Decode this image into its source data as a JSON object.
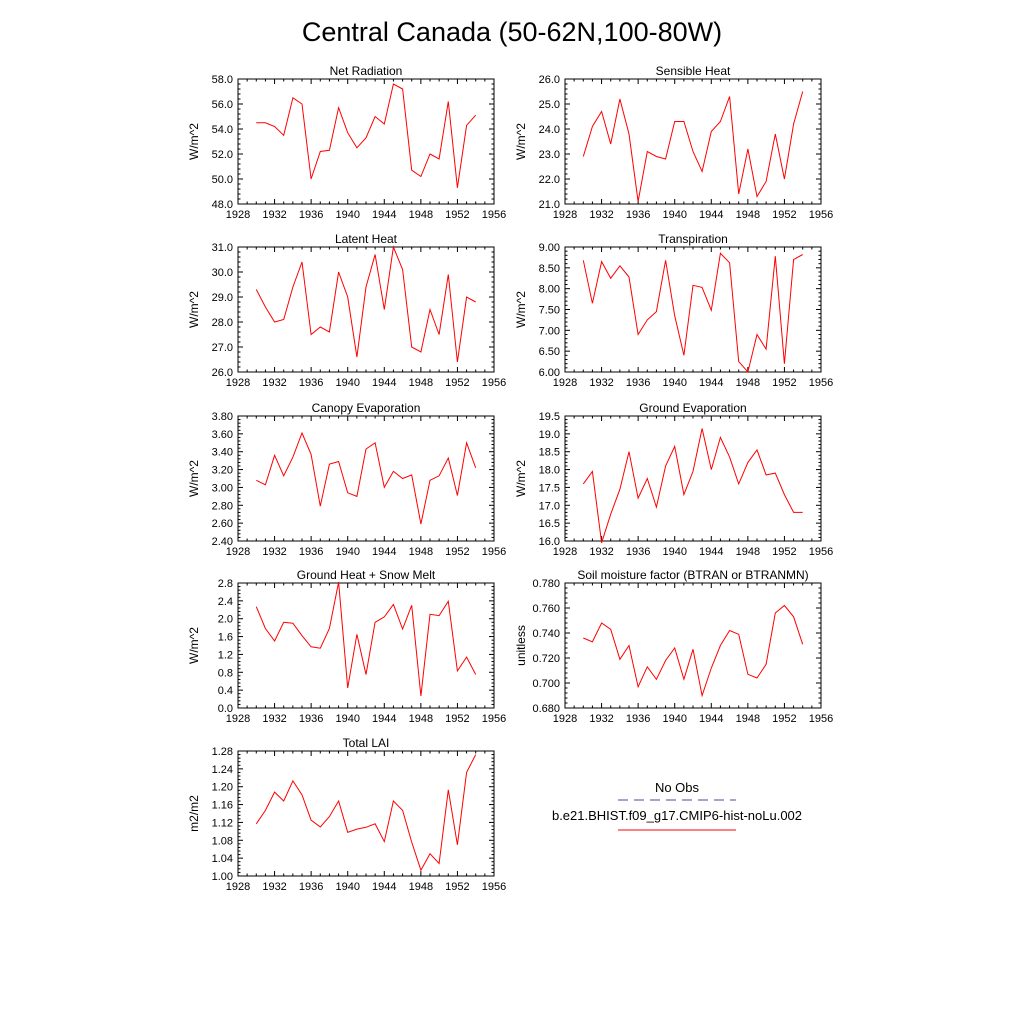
{
  "page": {
    "title": "Central Canada (50-62N,100-80W)"
  },
  "legend": {
    "obs_label": "No Obs",
    "obs_color": "#4a4aa0",
    "model_label": "b.e21.BHIST.f09_g17.CMIP6-hist-noLu.002",
    "model_color": "#ff0000"
  },
  "chart_data": [
    {
      "type": "line",
      "title": "Net Radiation",
      "xlabel": "",
      "ylabel": "W/m^2",
      "xlim": [
        1928,
        1956
      ],
      "ylim": [
        48,
        58
      ],
      "yticks": [
        "48.0",
        "50.0",
        "52.0",
        "54.0",
        "56.0",
        "58.0"
      ],
      "xticks": [
        "1928",
        "1932",
        "1936",
        "1940",
        "1944",
        "1948",
        "1952",
        "1956"
      ],
      "x": [
        1930,
        1931,
        1932,
        1933,
        1934,
        1935,
        1936,
        1937,
        1938,
        1939,
        1940,
        1941,
        1942,
        1943,
        1944,
        1945,
        1946,
        1947,
        1948,
        1949,
        1950,
        1951,
        1952,
        1953,
        1954
      ],
      "series": [
        {
          "values": [
            54.5,
            54.5,
            54.2,
            53.5,
            56.5,
            56.0,
            50.0,
            52.2,
            52.3,
            55.7,
            53.7,
            52.5,
            53.3,
            55.0,
            54.4,
            57.6,
            57.2,
            50.7,
            50.2,
            52.0,
            51.6,
            56.2,
            49.3,
            54.3,
            55.1
          ]
        }
      ]
    },
    {
      "type": "line",
      "title": "Sensible Heat",
      "xlabel": "",
      "ylabel": "W/m^2",
      "xlim": [
        1928,
        1956
      ],
      "ylim": [
        21,
        26
      ],
      "yticks": [
        "21.0",
        "22.0",
        "23.0",
        "24.0",
        "25.0",
        "26.0"
      ],
      "xticks": [
        "1928",
        "1932",
        "1936",
        "1940",
        "1944",
        "1948",
        "1952",
        "1956"
      ],
      "x": [
        1930,
        1931,
        1932,
        1933,
        1934,
        1935,
        1936,
        1937,
        1938,
        1939,
        1940,
        1941,
        1942,
        1943,
        1944,
        1945,
        1946,
        1947,
        1948,
        1949,
        1950,
        1951,
        1952,
        1953,
        1954
      ],
      "series": [
        {
          "values": [
            22.9,
            24.1,
            24.7,
            23.4,
            25.2,
            23.8,
            21.1,
            23.1,
            22.9,
            22.8,
            24.3,
            24.3,
            23.1,
            22.3,
            23.9,
            24.3,
            25.3,
            21.4,
            23.2,
            21.3,
            21.9,
            23.8,
            22.0,
            24.2,
            25.5
          ]
        }
      ]
    },
    {
      "type": "line",
      "title": "Latent Heat",
      "xlabel": "",
      "ylabel": "W/m^2",
      "xlim": [
        1928,
        1956
      ],
      "ylim": [
        26,
        31
      ],
      "yticks": [
        "26.0",
        "27.0",
        "28.0",
        "29.0",
        "30.0",
        "31.0"
      ],
      "xticks": [
        "1928",
        "1932",
        "1936",
        "1940",
        "1944",
        "1948",
        "1952",
        "1956"
      ],
      "x": [
        1930,
        1931,
        1932,
        1933,
        1934,
        1935,
        1936,
        1937,
        1938,
        1939,
        1940,
        1941,
        1942,
        1943,
        1944,
        1945,
        1946,
        1947,
        1948,
        1949,
        1950,
        1951,
        1952,
        1953,
        1954
      ],
      "series": [
        {
          "values": [
            29.3,
            28.6,
            28.0,
            28.1,
            29.4,
            30.4,
            27.5,
            27.8,
            27.6,
            30.0,
            29.0,
            26.6,
            29.4,
            30.7,
            28.5,
            31.0,
            30.1,
            27.0,
            26.8,
            28.5,
            27.5,
            29.9,
            26.4,
            29.0,
            28.8
          ]
        }
      ]
    },
    {
      "type": "line",
      "title": "Transpiration",
      "xlabel": "",
      "ylabel": "W/m^2",
      "xlim": [
        1928,
        1956
      ],
      "ylim": [
        6,
        9
      ],
      "yticks": [
        "6.00",
        "6.50",
        "7.00",
        "7.50",
        "8.00",
        "8.50",
        "9.00"
      ],
      "xticks": [
        "1928",
        "1932",
        "1936",
        "1940",
        "1944",
        "1948",
        "1952",
        "1956"
      ],
      "x": [
        1930,
        1931,
        1932,
        1933,
        1934,
        1935,
        1936,
        1937,
        1938,
        1939,
        1940,
        1941,
        1942,
        1943,
        1944,
        1945,
        1946,
        1947,
        1948,
        1949,
        1950,
        1951,
        1952,
        1953,
        1954
      ],
      "series": [
        {
          "values": [
            8.68,
            7.65,
            8.65,
            8.25,
            8.55,
            8.28,
            6.9,
            7.25,
            7.45,
            8.68,
            7.35,
            6.4,
            8.08,
            8.03,
            7.48,
            8.85,
            8.62,
            6.25,
            6.0,
            6.9,
            6.55,
            8.78,
            6.2,
            8.7,
            8.82
          ]
        }
      ]
    },
    {
      "type": "line",
      "title": "Canopy Evaporation",
      "xlabel": "",
      "ylabel": "W/m^2",
      "xlim": [
        1928,
        1956
      ],
      "ylim": [
        2.4,
        3.8
      ],
      "yticks": [
        "2.40",
        "2.60",
        "2.80",
        "3.00",
        "3.20",
        "3.40",
        "3.60",
        "3.80"
      ],
      "xticks": [
        "1928",
        "1932",
        "1936",
        "1940",
        "1944",
        "1948",
        "1952",
        "1956"
      ],
      "x": [
        1930,
        1931,
        1932,
        1933,
        1934,
        1935,
        1936,
        1937,
        1938,
        1939,
        1940,
        1941,
        1942,
        1943,
        1944,
        1945,
        1946,
        1947,
        1948,
        1949,
        1950,
        1951,
        1952,
        1953,
        1954
      ],
      "series": [
        {
          "values": [
            3.08,
            3.03,
            3.36,
            3.13,
            3.34,
            3.61,
            3.37,
            2.79,
            3.26,
            3.29,
            2.94,
            2.9,
            3.43,
            3.5,
            3.0,
            3.18,
            3.1,
            3.14,
            2.59,
            3.08,
            3.13,
            3.33,
            2.91,
            3.5,
            3.22
          ]
        }
      ]
    },
    {
      "type": "line",
      "title": "Ground Evaporation",
      "xlabel": "",
      "ylabel": "W/m^2",
      "xlim": [
        1928,
        1956
      ],
      "ylim": [
        16,
        19.5
      ],
      "yticks": [
        "16.0",
        "16.5",
        "17.0",
        "17.5",
        "18.0",
        "18.5",
        "19.0",
        "19.5"
      ],
      "xticks": [
        "1928",
        "1932",
        "1936",
        "1940",
        "1944",
        "1948",
        "1952",
        "1956"
      ],
      "x": [
        1930,
        1931,
        1932,
        1933,
        1934,
        1935,
        1936,
        1937,
        1938,
        1939,
        1940,
        1941,
        1942,
        1943,
        1944,
        1945,
        1946,
        1947,
        1948,
        1949,
        1950,
        1951,
        1952,
        1953,
        1954
      ],
      "series": [
        {
          "values": [
            17.6,
            17.95,
            15.95,
            16.75,
            17.45,
            18.5,
            17.2,
            17.75,
            16.95,
            18.1,
            18.65,
            17.3,
            17.95,
            19.15,
            18.0,
            18.9,
            18.35,
            17.6,
            18.2,
            18.55,
            17.85,
            17.9,
            17.3,
            16.8,
            16.8
          ]
        }
      ]
    },
    {
      "type": "line",
      "title": "Ground Heat + Snow Melt",
      "xlabel": "",
      "ylabel": "W/m^2",
      "xlim": [
        1928,
        1956
      ],
      "ylim": [
        0,
        2.8
      ],
      "yticks": [
        "0.0",
        "0.4",
        "0.8",
        "1.2",
        "1.6",
        "2.0",
        "2.4",
        "2.8"
      ],
      "xticks": [
        "1928",
        "1932",
        "1936",
        "1940",
        "1944",
        "1948",
        "1952",
        "1956"
      ],
      "x": [
        1930,
        1931,
        1932,
        1933,
        1934,
        1935,
        1936,
        1937,
        1938,
        1939,
        1940,
        1941,
        1942,
        1943,
        1944,
        1945,
        1946,
        1947,
        1948,
        1949,
        1950,
        1951,
        1952,
        1953,
        1954
      ],
      "series": [
        {
          "values": [
            2.27,
            1.78,
            1.5,
            1.92,
            1.9,
            1.62,
            1.37,
            1.34,
            1.78,
            2.82,
            0.45,
            1.65,
            0.75,
            1.92,
            2.04,
            2.32,
            1.77,
            2.3,
            0.27,
            2.1,
            2.07,
            2.39,
            0.83,
            1.14,
            0.75
          ]
        }
      ]
    },
    {
      "type": "line",
      "title": "Soil moisture factor (BTRAN or BTRANMN)",
      "xlabel": "",
      "ylabel": "unitless",
      "xlim": [
        1928,
        1956
      ],
      "ylim": [
        0.68,
        0.78
      ],
      "yticks": [
        "0.680",
        "0.700",
        "0.720",
        "0.740",
        "0.760",
        "0.780"
      ],
      "xticks": [
        "1928",
        "1932",
        "1936",
        "1940",
        "1944",
        "1948",
        "1952",
        "1956"
      ],
      "x": [
        1930,
        1931,
        1932,
        1933,
        1934,
        1935,
        1936,
        1937,
        1938,
        1939,
        1940,
        1941,
        1942,
        1943,
        1944,
        1945,
        1946,
        1947,
        1948,
        1949,
        1950,
        1951,
        1952,
        1953,
        1954
      ],
      "series": [
        {
          "values": [
            0.736,
            0.733,
            0.748,
            0.743,
            0.719,
            0.73,
            0.697,
            0.713,
            0.703,
            0.718,
            0.728,
            0.703,
            0.727,
            0.69,
            0.712,
            0.73,
            0.742,
            0.739,
            0.707,
            0.704,
            0.715,
            0.756,
            0.762,
            0.753,
            0.731
          ]
        }
      ]
    },
    {
      "type": "line",
      "title": "Total LAI",
      "xlabel": "",
      "ylabel": "m2/m2",
      "xlim": [
        1928,
        1956
      ],
      "ylim": [
        1.0,
        1.28
      ],
      "yticks": [
        "1.00",
        "1.04",
        "1.08",
        "1.12",
        "1.16",
        "1.20",
        "1.24",
        "1.28"
      ],
      "xticks": [
        "1928",
        "1932",
        "1936",
        "1940",
        "1944",
        "1948",
        "1952",
        "1956"
      ],
      "x": [
        1930,
        1931,
        1932,
        1933,
        1934,
        1935,
        1936,
        1937,
        1938,
        1939,
        1940,
        1941,
        1942,
        1943,
        1944,
        1945,
        1946,
        1947,
        1948,
        1949,
        1950,
        1951,
        1952,
        1953,
        1954
      ],
      "series": [
        {
          "values": [
            1.117,
            1.147,
            1.188,
            1.168,
            1.213,
            1.182,
            1.125,
            1.11,
            1.133,
            1.168,
            1.098,
            1.105,
            1.109,
            1.117,
            1.077,
            1.168,
            1.147,
            1.076,
            1.013,
            1.05,
            1.028,
            1.193,
            1.07,
            1.232,
            1.272
          ]
        }
      ]
    }
  ]
}
